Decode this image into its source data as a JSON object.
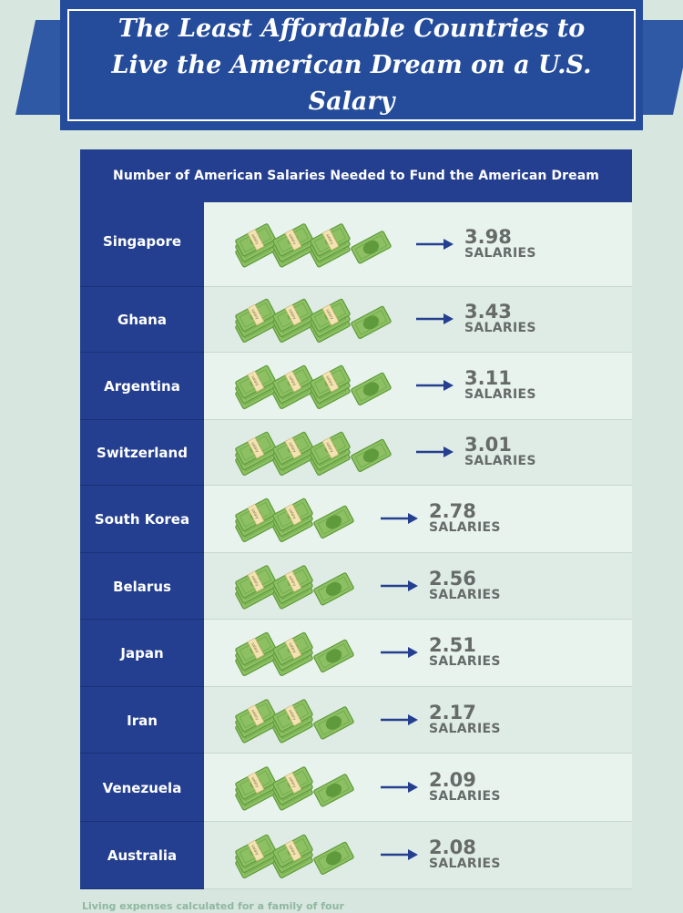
{
  "header": {
    "title": "The Least Affordable Countries to Live the American Dream on a U.S. Salary"
  },
  "table": {
    "heading": "Number of American Salaries Needed to Fund the American Dream",
    "unit_label": "SALARIES",
    "bill_label": "salary"
  },
  "footnote": "Living expenses calculated for a family of four",
  "colors": {
    "navy": "#243f8f",
    "banner": "#244c9a",
    "bill_green": "#8cc063",
    "background": "#d7e6df"
  },
  "chart_data": {
    "type": "table",
    "title": "The Least Affordable Countries to Live the American Dream on a U.S. Salary",
    "categories": [
      "Singapore",
      "Ghana",
      "Argentina",
      "Switzerland",
      "South Korea",
      "Belarus",
      "Japan",
      "Iran",
      "Venezuela",
      "Australia"
    ],
    "values": [
      3.98,
      3.43,
      3.11,
      3.01,
      2.78,
      2.56,
      2.51,
      2.17,
      2.09,
      2.08
    ],
    "value_labels": [
      "3.98",
      "3.43",
      "3.11",
      "3.01",
      "2.78",
      "2.56",
      "2.51",
      "2.17",
      "2.09",
      "2.08"
    ],
    "unit": "SALARIES",
    "icons": "money-stack-icon"
  }
}
